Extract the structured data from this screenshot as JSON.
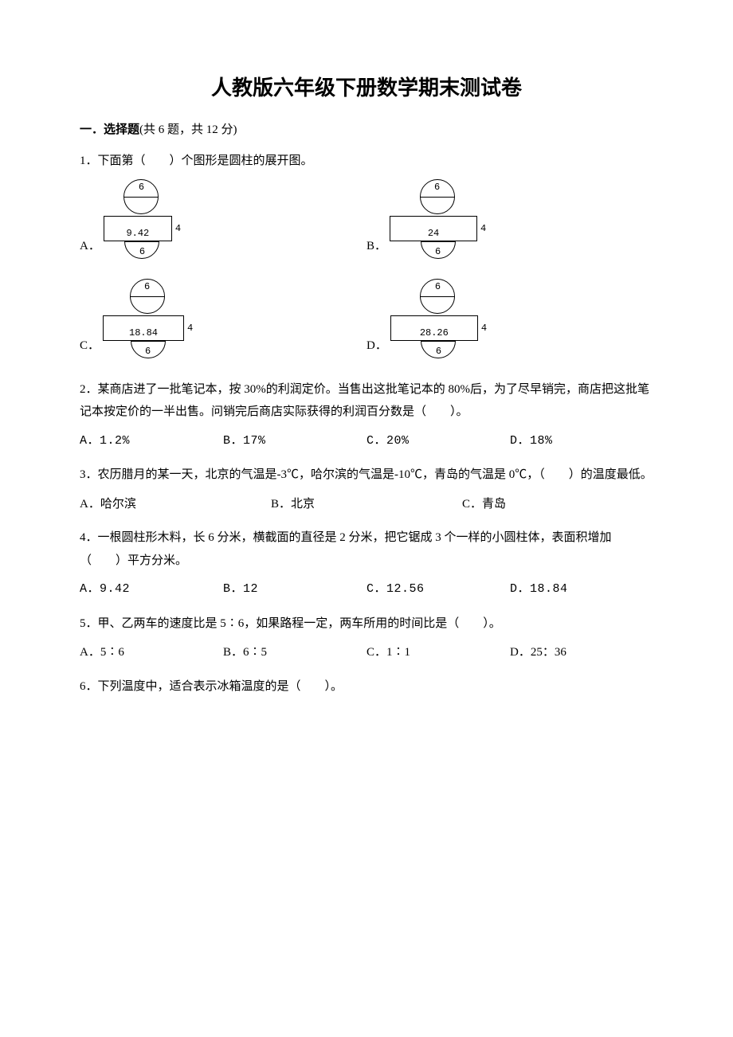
{
  "title": "人教版六年级下册数学期末测试卷",
  "section1": {
    "head_bold": "一．选择题",
    "head_rest": "(共 6 题，共 12 分)"
  },
  "q1": {
    "text": "1．下面第（　　）个图形是圆柱的展开图。",
    "diam": "6",
    "h": "4",
    "A": {
      "label": "A．",
      "w": "9.42",
      "rect_w": 86
    },
    "B": {
      "label": "B．",
      "w": "24",
      "rect_w": 110
    },
    "C": {
      "label": "C．",
      "w": "18.84",
      "rect_w": 102
    },
    "D": {
      "label": "D．",
      "w": "28.26",
      "rect_w": 110
    }
  },
  "q2": {
    "text": "2．某商店进了一批笔记本，按 30%的利润定价。当售出这批笔记本的 80%后，为了尽早销完，商店把这批笔记本按定价的一半出售。问销完后商店实际获得的利润百分数是（　　）。",
    "A": "A．1.2%",
    "B": "B．17%",
    "C": "C．20%",
    "D": "D．18%"
  },
  "q3": {
    "text": "3．农历腊月的某一天，北京的气温是-3℃，哈尔滨的气温是-10℃，青岛的气温是 0℃，（　　）的温度最低。",
    "A": "A．哈尔滨",
    "B": "B．北京",
    "C": "C．青岛"
  },
  "q4": {
    "text": "4．一根圆柱形木料，长 6 分米，横截面的直径是 2 分米，把它锯成 3 个一样的小圆柱体，表面积增加（　　）平方分米。",
    "A": "A．9.42",
    "B": "B．12",
    "C": "C．12.56",
    "D": "D．18.84"
  },
  "q5": {
    "text": "5．甲、乙两车的速度比是 5∶6，如果路程一定，两车所用的时间比是（　　）。",
    "A": "A．5∶6",
    "B": "B．6∶5",
    "C": "C．1∶1",
    "D": "D．25：36"
  },
  "q6": {
    "text": "6．下列温度中，适合表示冰箱温度的是（　　）。"
  }
}
